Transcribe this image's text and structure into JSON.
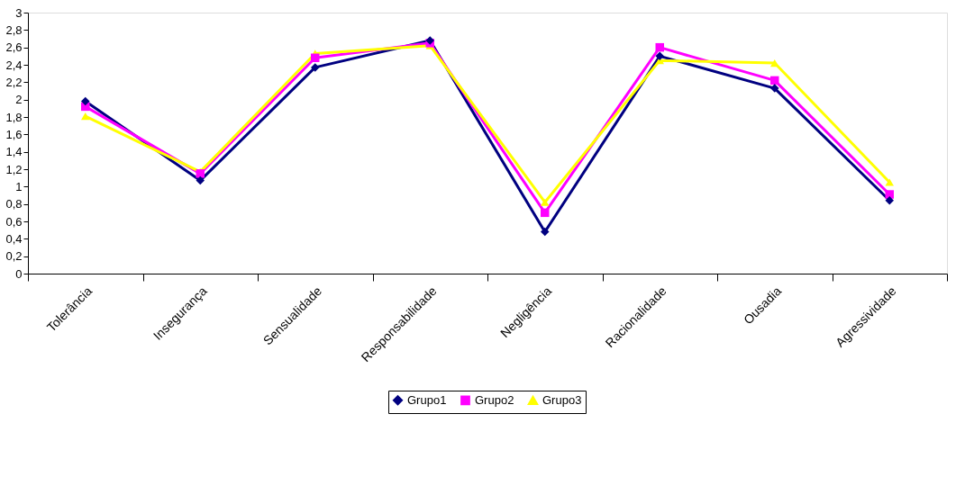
{
  "chart_data": {
    "type": "line",
    "categories": [
      "Tolerância",
      "Insegurança",
      "Sensualidade",
      "Responsabilidade",
      "Negligência",
      "Racionalidade",
      "Ousadia",
      "Agressividade"
    ],
    "series": [
      {
        "name": "Grupo1",
        "color": "#000080",
        "marker": "diamond",
        "values": [
          1.98,
          1.07,
          2.37,
          2.68,
          0.48,
          2.5,
          2.13,
          0.84
        ]
      },
      {
        "name": "Grupo2",
        "color": "#ff00ff",
        "marker": "square",
        "values": [
          1.92,
          1.15,
          2.48,
          2.65,
          0.7,
          2.6,
          2.22,
          0.91
        ]
      },
      {
        "name": "Grupo3",
        "color": "#ffff00",
        "marker": "triangle",
        "values": [
          1.81,
          1.17,
          2.53,
          2.62,
          0.82,
          2.45,
          2.42,
          1.05
        ]
      }
    ],
    "ylim": [
      0,
      3
    ],
    "yticks": [
      0,
      {
        "value": 0.2,
        "label": "0,2"
      },
      {
        "value": 0.4,
        "label": "0,4"
      },
      {
        "value": 0.6,
        "label": "0,6"
      },
      {
        "value": 0.8,
        "label": "0,8"
      },
      1,
      {
        "value": 1.2,
        "label": "1,2"
      },
      {
        "value": 1.4,
        "label": "1,4"
      },
      {
        "value": 1.6,
        "label": "1,6"
      },
      {
        "value": 1.8,
        "label": "1,8"
      },
      2,
      {
        "value": 2.2,
        "label": "2,2"
      },
      {
        "value": 2.4,
        "label": "2,4"
      },
      {
        "value": 2.6,
        "label": "2,6"
      },
      {
        "value": 2.8,
        "label": "2,8"
      },
      3
    ],
    "grid": false,
    "legend": "bottom",
    "line_style": "solid"
  }
}
